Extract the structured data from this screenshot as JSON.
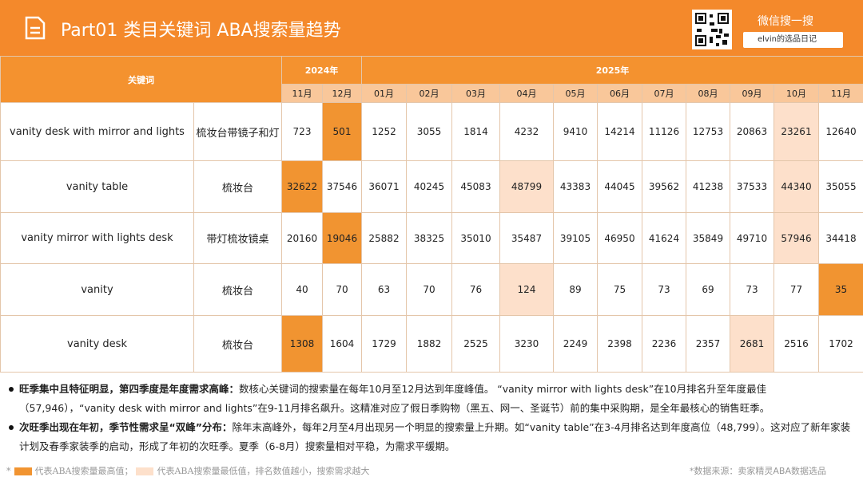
{
  "header": {
    "title": "Part01 类目关键词 ABA搜索量趋势",
    "wechat": "微信搜一搜",
    "search": "elvin的选品日记"
  },
  "table": {
    "keyword_header": "关键词",
    "years": [
      "2024年",
      "2025年"
    ],
    "months": [
      "11月",
      "12月",
      "01月",
      "02月",
      "03月",
      "04月",
      "05月",
      "06月",
      "07月",
      "08月",
      "09月",
      "10月",
      "11月"
    ],
    "rows": [
      {
        "keyword": "vanity desk with mirror and lights",
        "cn": "梳妆台带镜子和灯",
        "values": [
          723,
          501,
          1252,
          3055,
          1814,
          4232,
          9410,
          14214,
          11126,
          12753,
          20863,
          23261,
          12640
        ]
      },
      {
        "keyword": "vanity table",
        "cn": "梳妆台",
        "values": [
          32622,
          37546,
          36071,
          40245,
          45083,
          48799,
          43383,
          44045,
          39562,
          41238,
          37533,
          44340,
          35055
        ]
      },
      {
        "keyword": "vanity mirror with lights desk",
        "cn": "带灯梳妆镜桌",
        "values": [
          20160,
          19046,
          25882,
          38325,
          35010,
          35487,
          39105,
          46950,
          41624,
          35849,
          49710,
          57946,
          34418
        ]
      },
      {
        "keyword": "vanity",
        "cn": "梳妆台",
        "values": [
          40,
          70,
          63,
          70,
          76,
          124,
          89,
          75,
          73,
          69,
          73,
          77,
          35
        ]
      },
      {
        "keyword": "vanity desk",
        "cn": "梳妆台",
        "values": [
          1308,
          1604,
          1729,
          1882,
          2525,
          3230,
          2249,
          2398,
          2236,
          2357,
          2681,
          2516,
          1702
        ]
      }
    ]
  },
  "notes": [
    {
      "bold": "旺季集中且特征明显，第四季度是年度需求高峰：",
      "text": "数核心关键词的搜索量在每年10月至12月达到年度峰值。 “vanity mirror with lights desk”在10月排名升至年度最佳（57,946），“vanity desk with mirror and lights”在9-11月排名飙升。这精准对应了假日季购物（黑五、网一、圣诞节）前的集中采购期，是全年最核心的销售旺季。"
    },
    {
      "bold": "次旺季出现在年初，季节性需求呈“双峰”分布：",
      "text": "除年末高峰外，每年2月至4月出现另一个明显的搜索量上升期。如“vanity table”在3-4月排名达到年度高位（48,799）。这对应了新年家装计划及春季家装季的启动，形成了年初的次旺季。夏季（6-8月）搜索量相对平稳，为需求平缓期。"
    }
  ],
  "legend": {
    "max": "代表ABA搜索量最高值；",
    "min": "代表ABA搜索量最低值，排名数值越小，搜索需求越大"
  },
  "source": "*数据来源：卖家精灵ABA数据选品"
}
